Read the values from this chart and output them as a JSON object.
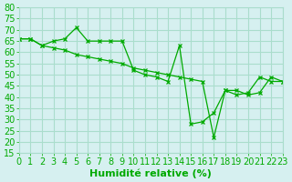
{
  "title": "",
  "xlabel": "Humidité relative (%)",
  "ylabel": "",
  "bg_color": "#d6f0f0",
  "grid_color": "#aaddcc",
  "line_color": "#00aa00",
  "xlim": [
    0,
    23
  ],
  "ylim": [
    15,
    80
  ],
  "yticks": [
    15,
    20,
    25,
    30,
    35,
    40,
    45,
    50,
    55,
    60,
    65,
    70,
    75,
    80
  ],
  "xticks": [
    0,
    1,
    2,
    3,
    4,
    5,
    6,
    7,
    8,
    9,
    10,
    11,
    12,
    13,
    14,
    15,
    16,
    17,
    18,
    19,
    20,
    21,
    22,
    23
  ],
  "series1_x": [
    0,
    1,
    2,
    3,
    4,
    5,
    6,
    7,
    8,
    9,
    10,
    11,
    12,
    13,
    14,
    15,
    16,
    17,
    18,
    19,
    20,
    21,
    22,
    23
  ],
  "series1_y": [
    66,
    66,
    63,
    65,
    66,
    71,
    65,
    65,
    65,
    65,
    52,
    50,
    49,
    47,
    63,
    28,
    29,
    33,
    43,
    41,
    42,
    49,
    47,
    47
  ],
  "series2_x": [
    0,
    1,
    2,
    3,
    4,
    5,
    6,
    7,
    8,
    9,
    10,
    11,
    12,
    13,
    14,
    15,
    16,
    17,
    18,
    19,
    20,
    21,
    22,
    23
  ],
  "series2_y": [
    66,
    66,
    63,
    62,
    61,
    59,
    58,
    57,
    56,
    55,
    53,
    52,
    51,
    50,
    49,
    48,
    47,
    22,
    43,
    43,
    41,
    42,
    49,
    47
  ],
  "font_color": "#00aa00",
  "tick_fontsize": 7,
  "xlabel_fontsize": 8
}
